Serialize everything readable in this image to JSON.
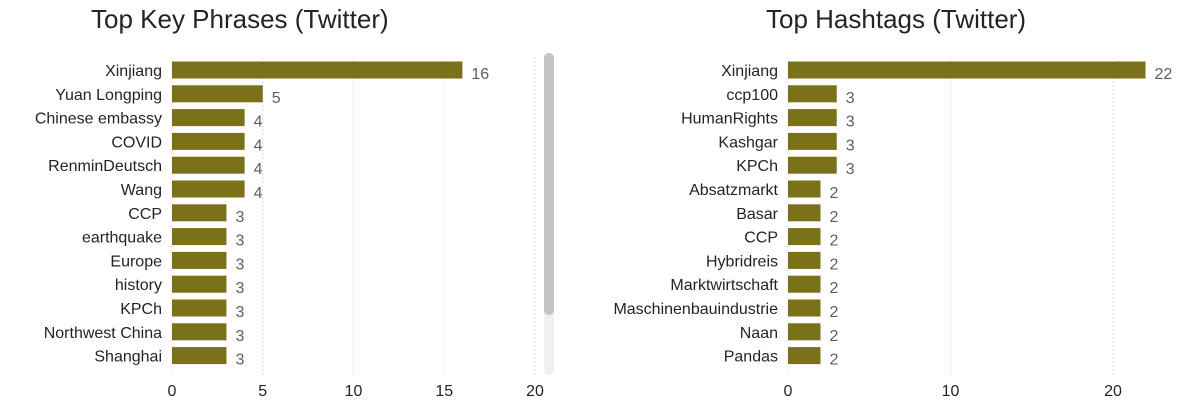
{
  "chart_data": [
    {
      "type": "bar",
      "orientation": "horizontal",
      "title": "Top Key Phrases (Twitter)",
      "categories": [
        "Xinjiang",
        "Yuan Longping",
        "Chinese embassy",
        "COVID",
        "RenminDeutsch",
        "Wang",
        "CCP",
        "earthquake",
        "Europe",
        "history",
        "KPCh",
        "Northwest China",
        "Shanghai"
      ],
      "values": [
        16,
        5,
        4,
        4,
        4,
        4,
        3,
        3,
        3,
        3,
        3,
        3,
        3
      ],
      "xlim": [
        0,
        20
      ],
      "xticks": [
        0,
        5,
        10,
        15,
        20
      ],
      "grid": "vertical dotted",
      "color": "#7a7118",
      "scrollbar": true
    },
    {
      "type": "bar",
      "orientation": "horizontal",
      "title": "Top Hashtags (Twitter)",
      "categories": [
        "Xinjiang",
        "ccp100",
        "HumanRights",
        "Kashgar",
        "KPCh",
        "Absatzmarkt",
        "Basar",
        "CCP",
        "Hybridreis",
        "Marktwirtschaft",
        "Maschinenbauindustrie",
        "Naan",
        "Pandas"
      ],
      "values": [
        22,
        3,
        3,
        3,
        3,
        2,
        2,
        2,
        2,
        2,
        2,
        2,
        2
      ],
      "xlim": [
        0,
        22
      ],
      "xticks": [
        0,
        10,
        20
      ],
      "grid": "vertical dotted",
      "color": "#7a7118",
      "scrollbar": false
    }
  ]
}
